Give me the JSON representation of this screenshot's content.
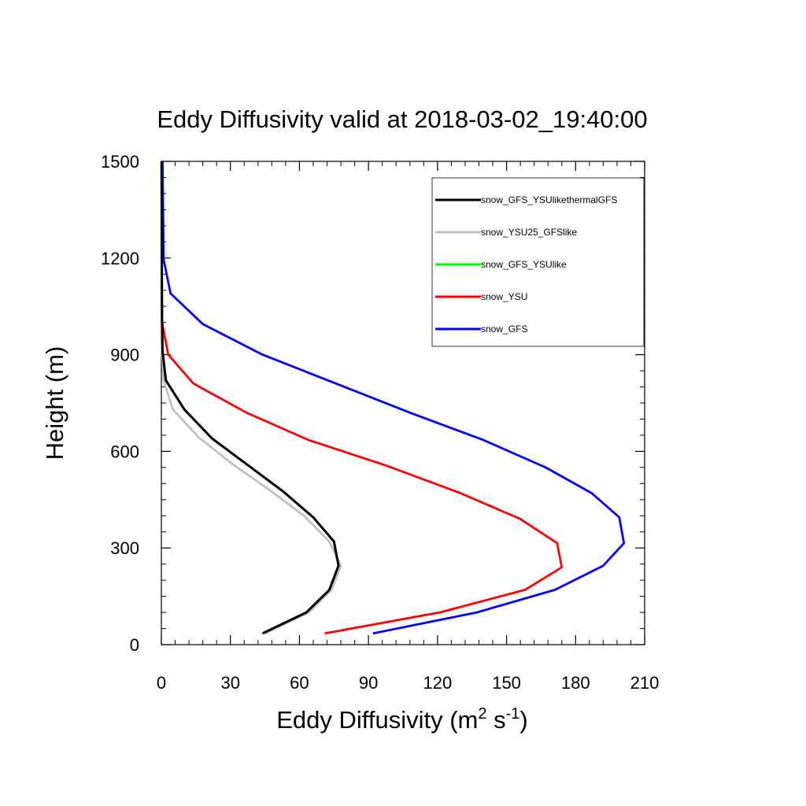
{
  "chart_data": {
    "type": "line",
    "title": "Eddy Diffusivity valid at 2018-03-02_19:40:00",
    "xlabel": {
      "base": "Eddy Diffusivity (m",
      "sup1": "2",
      "mid": " s",
      "sup2": "-1",
      "end": ")"
    },
    "ylabel": "Height (m)",
    "xlim": [
      0,
      210
    ],
    "ylim": [
      0,
      1500
    ],
    "xticks": [
      0,
      30,
      60,
      90,
      120,
      150,
      180,
      210
    ],
    "yticks": [
      0,
      300,
      600,
      900,
      1200,
      1500
    ],
    "legend_position": "top-right",
    "series": [
      {
        "name": "snow_GFS_YSUlikethermalGFS",
        "color": "#000000",
        "x": [
          44,
          63,
          73,
          77,
          75,
          66,
          53,
          38,
          22,
          10,
          2,
          0.5,
          0.3,
          0.2,
          0.2,
          0.1
        ],
        "y": [
          35,
          100,
          170,
          245,
          320,
          395,
          475,
          555,
          640,
          730,
          820,
          910,
          1000,
          1100,
          1200,
          1500
        ]
      },
      {
        "name": "snow_YSU25_GFSlike",
        "color": "#c0c0c0",
        "x": [
          45,
          64,
          74,
          78,
          73,
          62,
          47,
          31,
          16,
          5,
          1,
          0.3,
          0.2,
          0.1
        ],
        "y": [
          35,
          100,
          170,
          245,
          320,
          400,
          480,
          560,
          645,
          730,
          820,
          910,
          1100,
          1500
        ]
      },
      {
        "name": "snow_GFS_YSUlike",
        "color": "#00ff00",
        "x": [
          44,
          63,
          73,
          77,
          75,
          66,
          53,
          38,
          22,
          10,
          2,
          0.5,
          0.3,
          0.2,
          0.1
        ],
        "y": [
          35,
          100,
          170,
          245,
          320,
          395,
          475,
          555,
          640,
          730,
          820,
          910,
          1000,
          1200,
          1500
        ]
      },
      {
        "name": "snow_YSU",
        "color": "#ff0000",
        "x": [
          71,
          121,
          158,
          174,
          172,
          156,
          130,
          98,
          64,
          37,
          14,
          3,
          0.3,
          0.2,
          0.1
        ],
        "y": [
          35,
          100,
          170,
          240,
          315,
          390,
          470,
          555,
          635,
          720,
          810,
          900,
          1000,
          1200,
          1500
        ]
      },
      {
        "name": "snow_GFS",
        "color": "#0000ff",
        "x": [
          92,
          137,
          171,
          192,
          201,
          199,
          187,
          167,
          140,
          108,
          76,
          44,
          18,
          4,
          1,
          0.5
        ],
        "y": [
          35,
          100,
          170,
          245,
          315,
          395,
          470,
          550,
          635,
          720,
          810,
          900,
          995,
          1090,
          1195,
          1500
        ]
      }
    ]
  }
}
